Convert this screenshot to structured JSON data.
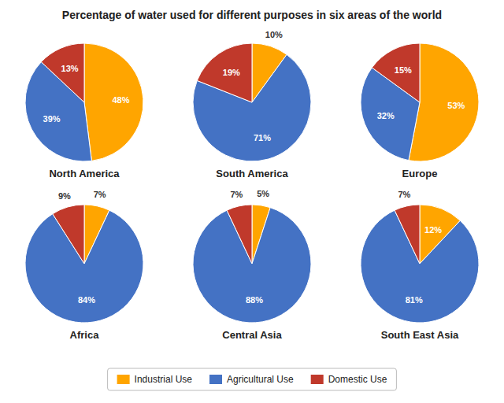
{
  "chart_data": {
    "type": "pie",
    "title": "Percentage of water used for different purposes in six areas of the world",
    "categories": [
      "Industrial Use",
      "Agricultural Use",
      "Domestic Use"
    ],
    "colors": [
      "#FFA500",
      "#4472C4",
      "#C0392B"
    ],
    "data_labels": true,
    "legend": "bottom",
    "series": [
      {
        "name": "North America",
        "values": [
          48,
          39,
          13
        ],
        "value_labels": [
          "48%",
          "39%",
          "13%"
        ]
      },
      {
        "name": "South America",
        "values": [
          10,
          71,
          19
        ],
        "value_labels": [
          "10%",
          "71%",
          "19%"
        ]
      },
      {
        "name": "Europe",
        "values": [
          53,
          32,
          15
        ],
        "value_labels": [
          "53%",
          "32%",
          "15%"
        ]
      },
      {
        "name": "Africa",
        "values": [
          7,
          84,
          9
        ],
        "value_labels": [
          "7%",
          "84%",
          "9%"
        ]
      },
      {
        "name": "Central Asia",
        "values": [
          5,
          88,
          7
        ],
        "value_labels": [
          "5%",
          "88%",
          "7%"
        ]
      },
      {
        "name": "South East Asia",
        "values": [
          12,
          81,
          7
        ],
        "value_labels": [
          "12%",
          "81%",
          "7%"
        ]
      }
    ]
  }
}
